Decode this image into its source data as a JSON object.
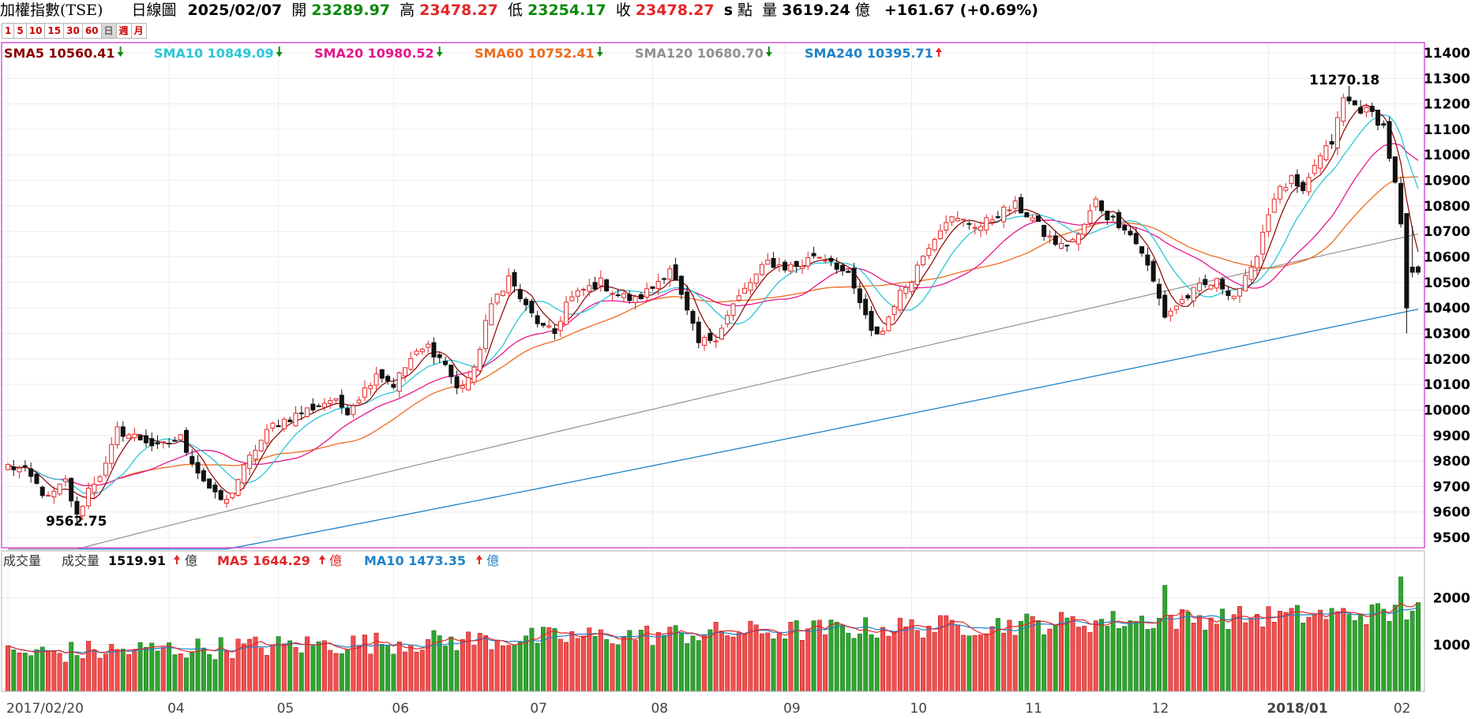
{
  "header": {
    "index_name": "加權指數(TSE)",
    "chart_kind": "日線圖",
    "date": "2025/02/07",
    "open_label": "開",
    "open": "23289.97",
    "high_label": "高",
    "high": "23478.27",
    "low_label": "低",
    "low": "23254.17",
    "close_label": "收",
    "close": "23478.27",
    "s_label": "s",
    "unit_label": "點",
    "vol_label": "量",
    "volume": "3619.24",
    "vol_unit": "億",
    "change": "+161.67 (+0.69%)"
  },
  "period_tabs": [
    "1",
    "5",
    "10",
    "15",
    "30",
    "60",
    "日",
    "週",
    "月"
  ],
  "active_tab": "日",
  "price_legend": [
    {
      "label": "SMA5",
      "value": "10560.41",
      "dir": "down",
      "color": "#8b0000"
    },
    {
      "label": "SMA10",
      "value": "10849.09",
      "dir": "down",
      "color": "#2cc6d6"
    },
    {
      "label": "SMA20",
      "value": "10980.52",
      "dir": "down",
      "color": "#e6168c"
    },
    {
      "label": "SMA60",
      "value": "10752.41",
      "dir": "down",
      "color": "#ee6a1c"
    },
    {
      "label": "SMA120",
      "value": "10680.70",
      "dir": "down",
      "color": "#909090"
    },
    {
      "label": "SMA240",
      "value": "10395.71",
      "dir": "up",
      "color": "#1f82c9"
    }
  ],
  "volume_legend": {
    "title": "成交量",
    "items": [
      {
        "label": "成交量",
        "value": "1519.91",
        "dir": "up",
        "unit": "億",
        "color": "#000000"
      },
      {
        "label": "MA5",
        "value": "1644.29",
        "dir": "up",
        "unit": "億",
        "color": "#e32626"
      },
      {
        "label": "MA10",
        "value": "1473.35",
        "dir": "up",
        "unit": "億",
        "color": "#1f82c9"
      }
    ]
  },
  "annotations": {
    "max_label": "11270.18",
    "min_label": "9562.75"
  },
  "chart_data": {
    "type": "candlestick",
    "price_ylim": [
      9460,
      11440
    ],
    "price_ticks": [
      9500,
      9600,
      9700,
      9800,
      9900,
      10000,
      10100,
      10200,
      10300,
      10400,
      10500,
      10600,
      10700,
      10800,
      10900,
      11000,
      11100,
      11200,
      11300,
      11400
    ],
    "volume_ticks": [
      1000,
      2000
    ],
    "volume_ylim": [
      0,
      2600
    ],
    "x_labels": [
      {
        "i": 0,
        "text": "2017/02/20",
        "bold": false
      },
      {
        "i": 28,
        "text": "04",
        "bold": false
      },
      {
        "i": 47,
        "text": "05",
        "bold": false
      },
      {
        "i": 67,
        "text": "06",
        "bold": false
      },
      {
        "i": 91,
        "text": "07",
        "bold": false
      },
      {
        "i": 112,
        "text": "08",
        "bold": false
      },
      {
        "i": 135,
        "text": "09",
        "bold": false
      },
      {
        "i": 157,
        "text": "10",
        "bold": false
      },
      {
        "i": 177,
        "text": "11",
        "bold": false
      },
      {
        "i": 199,
        "text": "12",
        "bold": false
      },
      {
        "i": 219,
        "text": "2018/01",
        "bold": true
      },
      {
        "i": 241,
        "text": "02",
        "bold": false
      }
    ],
    "price_anchors": [
      [
        0,
        9780
      ],
      [
        3,
        9760
      ],
      [
        7,
        9650
      ],
      [
        10,
        9720
      ],
      [
        12,
        9580
      ],
      [
        14,
        9690
      ],
      [
        17,
        9780
      ],
      [
        19,
        9920
      ],
      [
        24,
        9880
      ],
      [
        26,
        9850
      ],
      [
        30,
        9890
      ],
      [
        33,
        9760
      ],
      [
        36,
        9660
      ],
      [
        38,
        9640
      ],
      [
        40,
        9730
      ],
      [
        43,
        9850
      ],
      [
        46,
        9940
      ],
      [
        50,
        9980
      ],
      [
        56,
        10040
      ],
      [
        59,
        10000
      ],
      [
        62,
        10080
      ],
      [
        64,
        10150
      ],
      [
        67,
        10100
      ],
      [
        70,
        10200
      ],
      [
        73,
        10250
      ],
      [
        76,
        10180
      ],
      [
        78,
        10080
      ],
      [
        81,
        10150
      ],
      [
        83,
        10350
      ],
      [
        85,
        10450
      ],
      [
        87,
        10520
      ],
      [
        90,
        10400
      ],
      [
        93,
        10320
      ],
      [
        95,
        10300
      ],
      [
        97,
        10420
      ],
      [
        100,
        10470
      ],
      [
        103,
        10500
      ],
      [
        106,
        10450
      ],
      [
        109,
        10430
      ],
      [
        112,
        10480
      ],
      [
        115,
        10560
      ],
      [
        117,
        10440
      ],
      [
        120,
        10260
      ],
      [
        123,
        10290
      ],
      [
        126,
        10410
      ],
      [
        129,
        10500
      ],
      [
        132,
        10580
      ],
      [
        135,
        10560
      ],
      [
        138,
        10570
      ],
      [
        140,
        10610
      ],
      [
        143,
        10590
      ],
      [
        146,
        10520
      ],
      [
        148,
        10420
      ],
      [
        150,
        10300
      ],
      [
        152,
        10310
      ],
      [
        154,
        10420
      ],
      [
        157,
        10520
      ],
      [
        160,
        10650
      ],
      [
        163,
        10750
      ],
      [
        166,
        10740
      ],
      [
        169,
        10720
      ],
      [
        172,
        10770
      ],
      [
        175,
        10800
      ],
      [
        178,
        10750
      ],
      [
        180,
        10690
      ],
      [
        183,
        10640
      ],
      [
        186,
        10680
      ],
      [
        189,
        10820
      ],
      [
        191,
        10760
      ],
      [
        194,
        10720
      ],
      [
        197,
        10620
      ],
      [
        199,
        10500
      ],
      [
        201,
        10370
      ],
      [
        204,
        10430
      ],
      [
        207,
        10480
      ],
      [
        210,
        10500
      ],
      [
        213,
        10450
      ],
      [
        216,
        10540
      ],
      [
        218,
        10700
      ],
      [
        220,
        10840
      ],
      [
        223,
        10900
      ],
      [
        225,
        10840
      ],
      [
        227,
        10960
      ],
      [
        230,
        11050
      ],
      [
        232,
        11220
      ],
      [
        235,
        11180
      ],
      [
        237,
        11160
      ],
      [
        239,
        11110
      ],
      [
        241,
        10880
      ],
      [
        242,
        10720
      ],
      [
        243,
        10400
      ],
      [
        244,
        10560
      ],
      [
        245,
        10540
      ]
    ],
    "closes_note": "daily candles, 245 sessions",
    "sma_values": {
      "SMA5": "10560.41",
      "SMA10": "10849.09",
      "SMA20": "10980.52",
      "SMA60": "10752.41",
      "SMA120": "10680.70",
      "SMA240": "10395.71"
    },
    "sma240_end_range": [
      9470,
      10395
    ],
    "sma120_end_range": [
      9480,
      10690
    ]
  }
}
